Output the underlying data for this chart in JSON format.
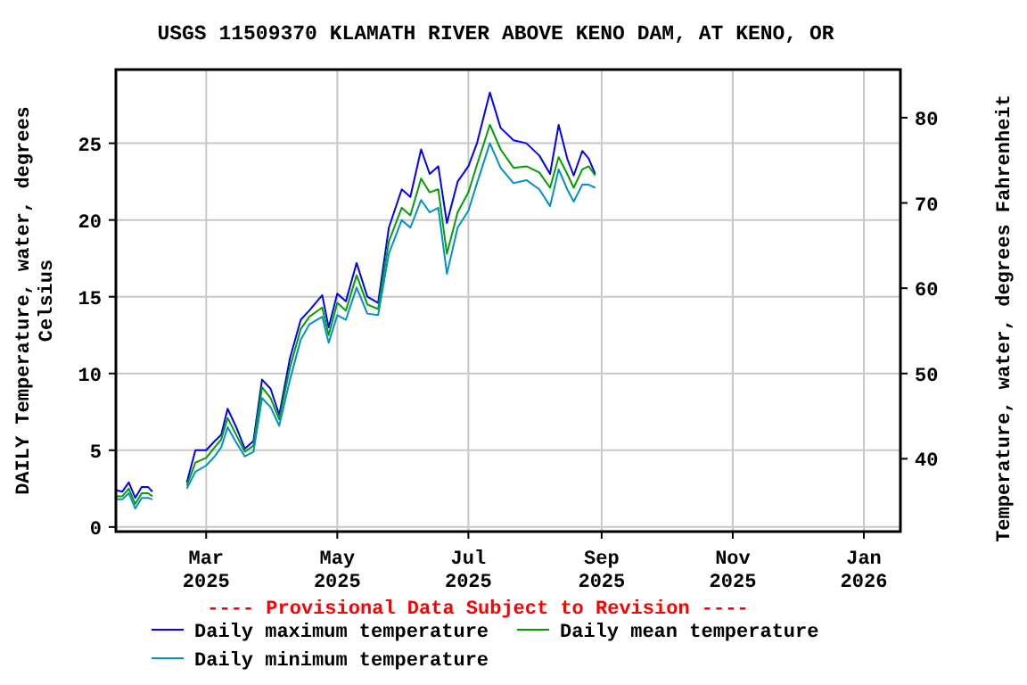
{
  "chart_data": {
    "type": "line",
    "title": "USGS 11509370 KLAMATH RIVER ABOVE KENO DAM, AT KENO, OR",
    "ylabel": "DAILY Temperature, water, degrees Celsius",
    "y2label": "Temperature, water, degrees Fahrenheit",
    "annotations": [
      "---- Provisional Data Subject to Revision ----"
    ],
    "x": [
      "2025-01-18",
      "2025-01-21",
      "2025-01-24",
      "2025-01-27",
      "2025-01-30",
      "2025-02-02",
      "2025-02-04",
      "2025-02-10",
      "2025-02-20",
      "2025-02-24",
      "2025-03-01",
      "2025-03-05",
      "2025-03-08",
      "2025-03-11",
      "2025-03-15",
      "2025-03-19",
      "2025-03-23",
      "2025-03-27",
      "2025-03-31",
      "2025-04-04",
      "2025-04-09",
      "2025-04-14",
      "2025-04-18",
      "2025-04-24",
      "2025-04-27",
      "2025-05-01",
      "2025-05-05",
      "2025-05-10",
      "2025-05-15",
      "2025-05-20",
      "2025-05-25",
      "2025-05-31",
      "2025-06-04",
      "2025-06-09",
      "2025-06-13",
      "2025-06-17",
      "2025-06-21",
      "2025-06-26",
      "2025-07-01",
      "2025-07-05",
      "2025-07-11",
      "2025-07-16",
      "2025-07-22",
      "2025-07-28",
      "2025-08-03",
      "2025-08-08",
      "2025-08-12",
      "2025-08-16",
      "2025-08-19",
      "2025-08-23",
      "2025-08-26",
      "2025-08-29"
    ],
    "series": [
      {
        "name": "Daily maximum temperature",
        "color": "#0000ff",
        "values": [
          2.4,
          2.3,
          2.9,
          1.9,
          2.6,
          2.6,
          2.3,
          null,
          2.9,
          5.0,
          5.0,
          5.6,
          6.0,
          7.7,
          6.5,
          5.1,
          5.6,
          9.6,
          9.0,
          7.3,
          11.0,
          13.5,
          14.1,
          15.1,
          13.0,
          15.2,
          14.7,
          17.2,
          15.0,
          14.6,
          19.5,
          22.0,
          21.5,
          24.6,
          23.0,
          23.5,
          19.8,
          22.5,
          23.5,
          25.0,
          28.3,
          26.0,
          25.2,
          25.0,
          24.2,
          23.0,
          26.2,
          24.0,
          22.9,
          24.5,
          24.0,
          23.0
        ]
      },
      {
        "name": "Daily mean temperature",
        "color": "#00a000",
        "values": [
          2.0,
          2.0,
          2.5,
          1.5,
          2.2,
          2.2,
          2.0,
          null,
          2.7,
          4.2,
          4.5,
          5.2,
          5.7,
          7.1,
          6.0,
          4.9,
          5.3,
          9.1,
          8.4,
          7.0,
          10.4,
          12.9,
          13.7,
          14.3,
          12.5,
          14.6,
          14.1,
          16.4,
          14.5,
          14.2,
          18.6,
          20.8,
          20.3,
          22.7,
          21.8,
          22.0,
          17.8,
          20.5,
          21.8,
          23.6,
          26.2,
          24.6,
          23.4,
          23.5,
          23.1,
          22.1,
          24.1,
          23.0,
          22.1,
          23.3,
          23.5,
          22.9
        ]
      },
      {
        "name": "Daily minimum temperature",
        "color": "#0090d0",
        "values": [
          1.8,
          1.8,
          2.2,
          1.2,
          1.9,
          1.9,
          1.8,
          null,
          2.5,
          3.6,
          4.0,
          4.6,
          5.2,
          6.5,
          5.5,
          4.6,
          4.9,
          8.4,
          7.8,
          6.6,
          9.6,
          12.2,
          13.2,
          13.7,
          12.0,
          13.8,
          13.5,
          15.6,
          13.9,
          13.8,
          17.8,
          20.0,
          19.5,
          21.3,
          20.5,
          20.8,
          16.5,
          19.5,
          20.6,
          22.4,
          25.0,
          23.4,
          22.4,
          22.6,
          22.0,
          20.9,
          23.3,
          22.0,
          21.2,
          22.3,
          22.3,
          22.1
        ]
      }
    ],
    "xlim": [
      "2025-01-18",
      "2026-01-18"
    ],
    "xticks": [
      {
        "value": "2025-03-01",
        "label": "Mar 2025"
      },
      {
        "value": "2025-05-01",
        "label": "May 2025"
      },
      {
        "value": "2025-07-01",
        "label": "Jul 2025"
      },
      {
        "value": "2025-09-01",
        "label": "Sep 2025"
      },
      {
        "value": "2025-11-01",
        "label": "Nov 2025"
      },
      {
        "value": "2026-01-01",
        "label": "Jan 2026"
      }
    ],
    "ylim": [
      -0.3,
      29.8
    ],
    "yticks": [
      0,
      5,
      10,
      15,
      20,
      25
    ],
    "y2lim": [
      31.46,
      85.64
    ],
    "y2ticks": [
      40,
      50,
      60,
      70,
      80
    ],
    "grid": true,
    "legend": "bottom",
    "marker": "none",
    "line_style": "solid"
  }
}
